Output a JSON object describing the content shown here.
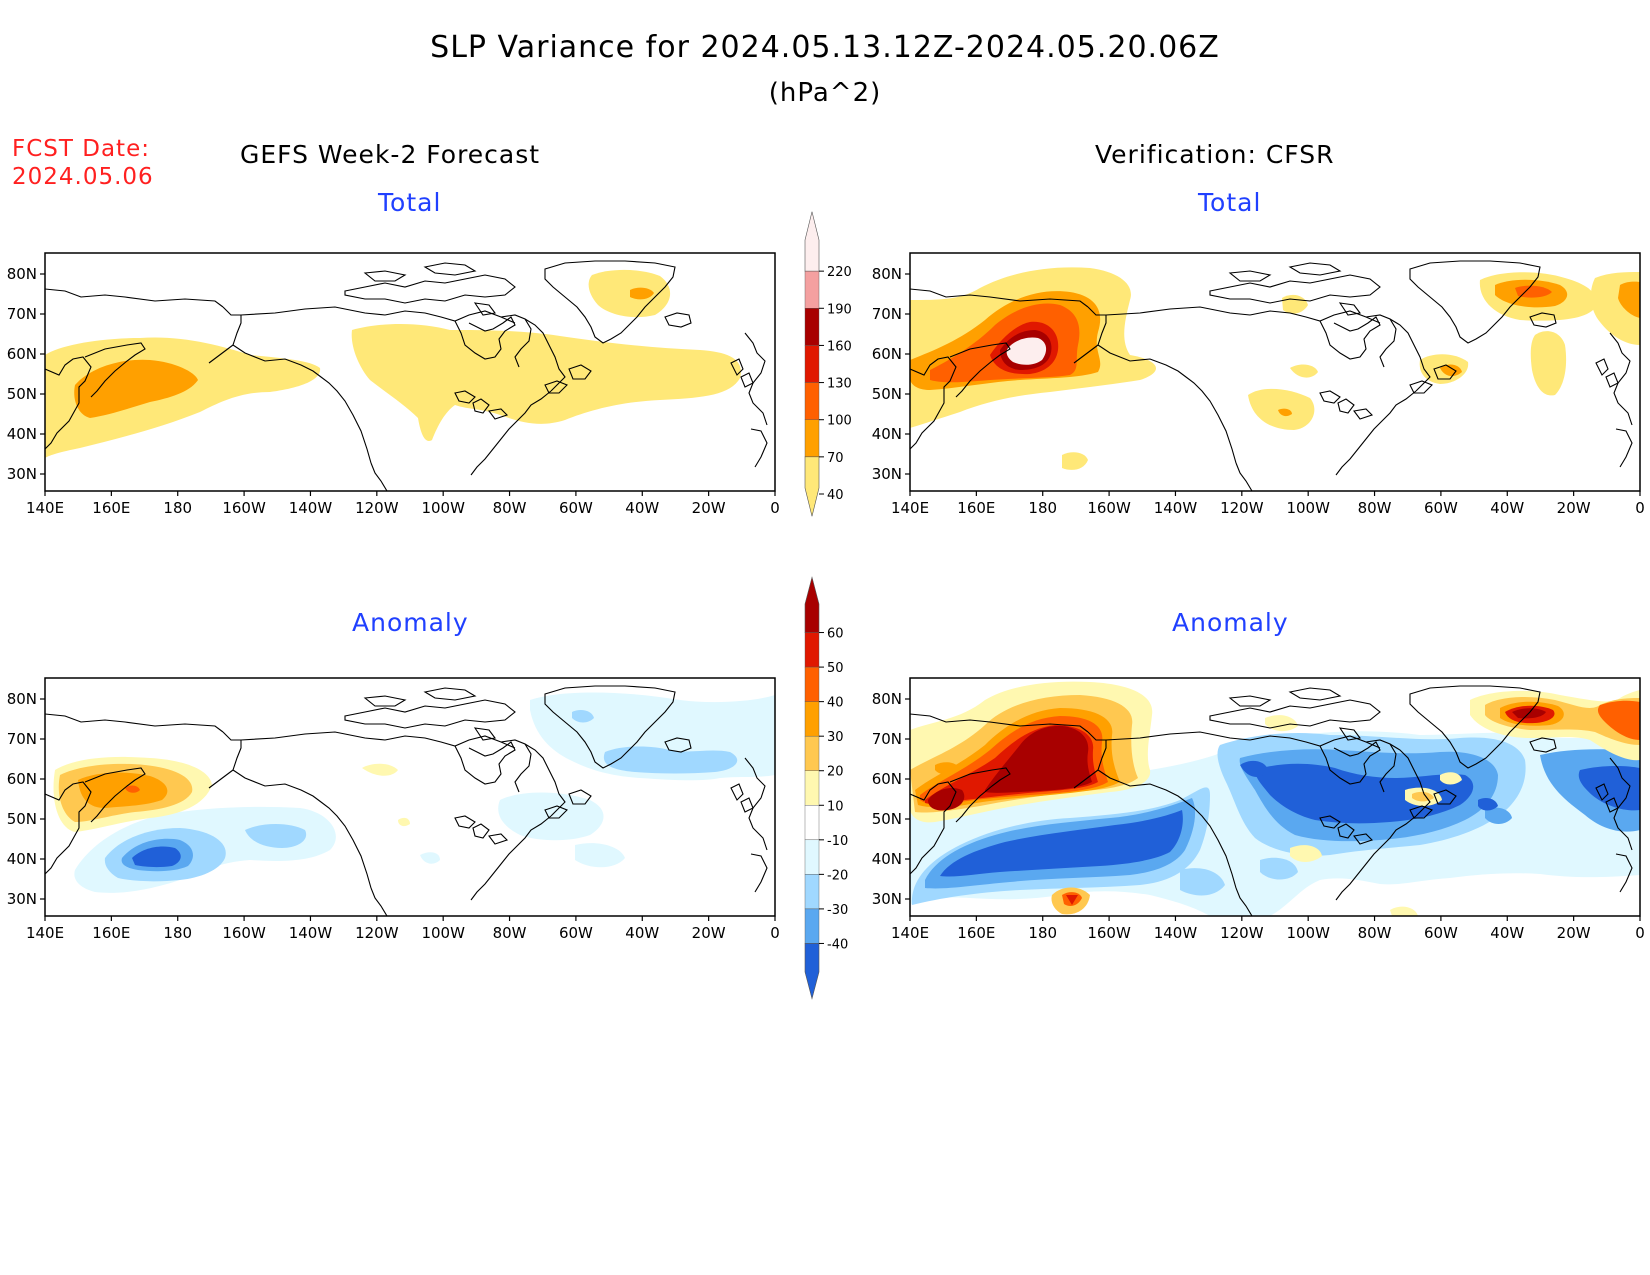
{
  "title": "SLP Variance for 2024.05.13.12Z-2024.05.20.06Z",
  "units": "(hPa^2)",
  "fcst": {
    "label": "FCST Date:",
    "date": "2024.05.06"
  },
  "columns": {
    "left": "GEFS Week-2 Forecast",
    "right": "Verification: CFSR"
  },
  "panels": {
    "left_top": "Total",
    "right_top": "Total",
    "left_bottom": "Anomaly",
    "right_bottom": "Anomaly"
  },
  "lat_labels": [
    "80N",
    "70N",
    "60N",
    "50N",
    "40N",
    "30N"
  ],
  "lon_labels": [
    "140E",
    "160E",
    "180",
    "160W",
    "140W",
    "120W",
    "100W",
    "80W",
    "60W",
    "40W",
    "20W",
    "0"
  ],
  "total_colorbar": {
    "levels": [
      "220",
      "190",
      "160",
      "130",
      "100",
      "70",
      "40"
    ],
    "colors": [
      "#fdeeee",
      "#f4a0a0",
      "#a80000",
      "#e01800",
      "#ff6000",
      "#ffa000",
      "#ffe878"
    ]
  },
  "anomaly_colorbar": {
    "levels": [
      "60",
      "50",
      "40",
      "30",
      "20",
      "10",
      "-10",
      "-20",
      "-30",
      "-40"
    ],
    "colors": [
      "#a80000",
      "#e01800",
      "#ff6000",
      "#ffa000",
      "#ffc850",
      "#fff8b0",
      "#ffffff",
      "#e0f8ff",
      "#a0d8ff",
      "#5aa8f0",
      "#2060d8"
    ]
  }
}
